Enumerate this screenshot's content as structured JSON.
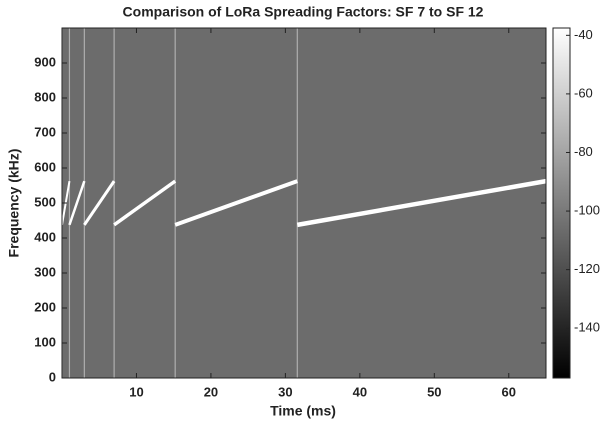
{
  "chart_data": {
    "type": "spectrogram",
    "title": "Comparison of LoRa Spreading Factors: SF 7 to SF 12",
    "xlabel": "Time (ms)",
    "ylabel": "Frequency (kHz)",
    "xlim": [
      0,
      65
    ],
    "xticks": [
      10,
      20,
      30,
      40,
      50,
      60
    ],
    "ylim": [
      0,
      1000
    ],
    "yticks": [
      0,
      100,
      200,
      300,
      400,
      500,
      600,
      700,
      800,
      900
    ],
    "colormap": "gray",
    "background_color": "#6c6c6c",
    "chirp_color": "#ffffff",
    "clim": [
      -157,
      -37.5
    ],
    "cticks": [
      -40,
      -60,
      -80,
      -100,
      -120,
      -140
    ],
    "series": [
      {
        "x": [
          0,
          1
        ],
        "values": [
          437.5,
          562.5
        ]
      },
      {
        "x": [
          1,
          3
        ],
        "values": [
          437.5,
          562.5
        ]
      },
      {
        "x": [
          3,
          7
        ],
        "values": [
          437.5,
          562.5
        ]
      },
      {
        "x": [
          7,
          15.2
        ],
        "values": [
          437.5,
          562.5
        ]
      },
      {
        "x": [
          15.2,
          31.6
        ],
        "values": [
          437.5,
          562.5
        ]
      },
      {
        "x": [
          31.6,
          65
        ],
        "values": [
          437.5,
          562.5
        ]
      }
    ]
  }
}
